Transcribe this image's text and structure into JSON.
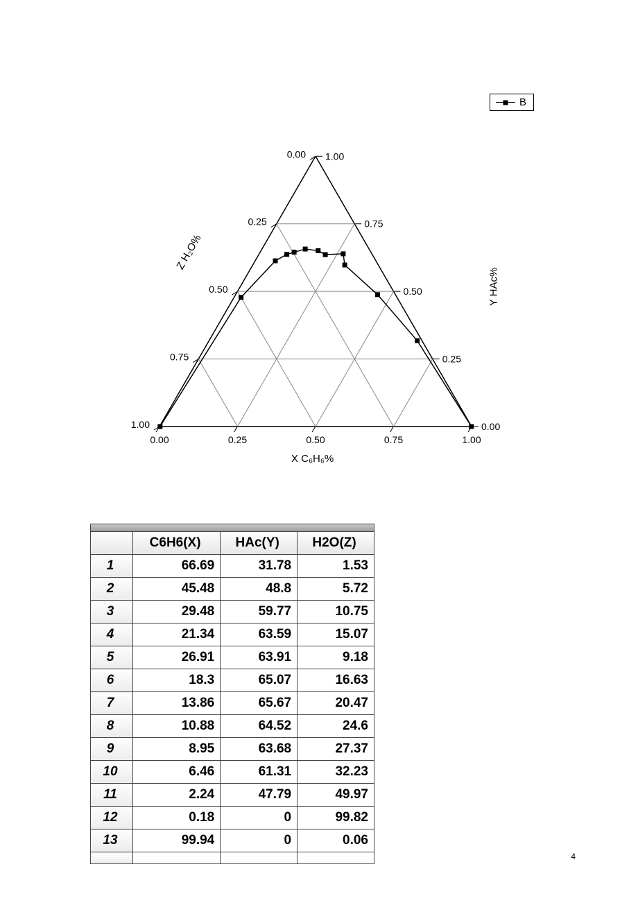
{
  "page_number": "4",
  "legend": {
    "label": "B"
  },
  "ternary": {
    "type": "ternary",
    "side": 450,
    "background_color": "#ffffff",
    "grid_color": "#808a8a",
    "line_color": "#000000",
    "marker": {
      "shape": "square",
      "size": 7,
      "color": "#000000"
    },
    "axes": {
      "x_label": "X  C₆H₆%",
      "y_label": "Y  HAc%",
      "z_label": "Z  H₂O%",
      "ticks_left": [
        "0.00",
        "0.25",
        "0.50",
        "0.75",
        "1.00"
      ],
      "ticks_right": [
        "1.00",
        "0.75",
        "0.50",
        "0.25",
        "0.00"
      ],
      "ticks_bottom": [
        "0.00",
        "0.25",
        "0.50",
        "0.75",
        "1.00"
      ]
    },
    "series_B": {
      "points_xyz": [
        [
          99.94,
          0.0,
          0.06
        ],
        [
          66.69,
          31.78,
          1.53
        ],
        [
          45.48,
          48.8,
          5.72
        ],
        [
          29.48,
          59.77,
          10.75
        ],
        [
          26.91,
          63.91,
          9.18
        ],
        [
          21.34,
          63.59,
          15.07
        ],
        [
          18.3,
          65.07,
          16.63
        ],
        [
          13.86,
          65.67,
          20.47
        ],
        [
          10.88,
          64.52,
          24.6
        ],
        [
          8.95,
          63.68,
          27.37
        ],
        [
          6.46,
          61.31,
          32.23
        ],
        [
          2.24,
          47.79,
          49.97
        ],
        [
          0.18,
          0.0,
          99.82
        ]
      ]
    }
  },
  "table": {
    "type": "table",
    "header_bg": "#ececec",
    "row_bg": "#ffffff",
    "border_color": "#444444",
    "font_size": 19,
    "columns": [
      "",
      "C6H6(X)",
      "HAc(Y)",
      "H2O(Z)"
    ],
    "rows": [
      [
        "1",
        "66.69",
        "31.78",
        "1.53"
      ],
      [
        "2",
        "45.48",
        "48.8",
        "5.72"
      ],
      [
        "3",
        "29.48",
        "59.77",
        "10.75"
      ],
      [
        "4",
        "21.34",
        "63.59",
        "15.07"
      ],
      [
        "5",
        "26.91",
        "63.91",
        "9.18"
      ],
      [
        "6",
        "18.3",
        "65.07",
        "16.63"
      ],
      [
        "7",
        "13.86",
        "65.67",
        "20.47"
      ],
      [
        "8",
        "10.88",
        "64.52",
        "24.6"
      ],
      [
        "9",
        "8.95",
        "63.68",
        "27.37"
      ],
      [
        "10",
        "6.46",
        "61.31",
        "32.23"
      ],
      [
        "11",
        "2.24",
        "47.79",
        "49.97"
      ],
      [
        "12",
        "0.18",
        "0",
        "99.82"
      ],
      [
        "13",
        "99.94",
        "0",
        "0.06"
      ]
    ]
  }
}
